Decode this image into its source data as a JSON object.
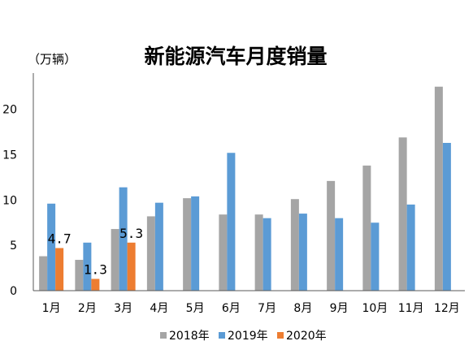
{
  "chart_data": {
    "type": "bar",
    "title": "新能源汽车月度销量",
    "unit_label": "（万辆）",
    "categories": [
      "1月",
      "2月",
      "3月",
      "4月",
      "5月",
      "6月",
      "7月",
      "8月",
      "9月",
      "10月",
      "11月",
      "12月"
    ],
    "series": [
      {
        "name": "2018年",
        "color": "#A5A5A5",
        "values": [
          3.8,
          3.4,
          6.8,
          8.2,
          10.2,
          8.4,
          8.4,
          10.1,
          12.1,
          13.8,
          16.9,
          22.5
        ]
      },
      {
        "name": "2019年",
        "color": "#5B9BD5",
        "values": [
          9.6,
          5.3,
          11.4,
          9.7,
          10.4,
          15.2,
          8.0,
          8.5,
          8.0,
          7.5,
          9.5,
          16.3
        ]
      },
      {
        "name": "2020年",
        "color": "#ED7D31",
        "values": [
          4.7,
          1.3,
          5.3,
          null,
          null,
          null,
          null,
          null,
          null,
          null,
          null,
          null
        ]
      }
    ],
    "data_labels": [
      {
        "series": 2,
        "category": 0,
        "text": "4.7"
      },
      {
        "series": 2,
        "category": 1,
        "text": "1.3"
      },
      {
        "series": 2,
        "category": 2,
        "text": "5.3"
      }
    ],
    "yticks": [
      0,
      5,
      10,
      15,
      20
    ],
    "ylim": [
      0,
      24
    ],
    "grid": false,
    "legend_position": "bottom"
  }
}
